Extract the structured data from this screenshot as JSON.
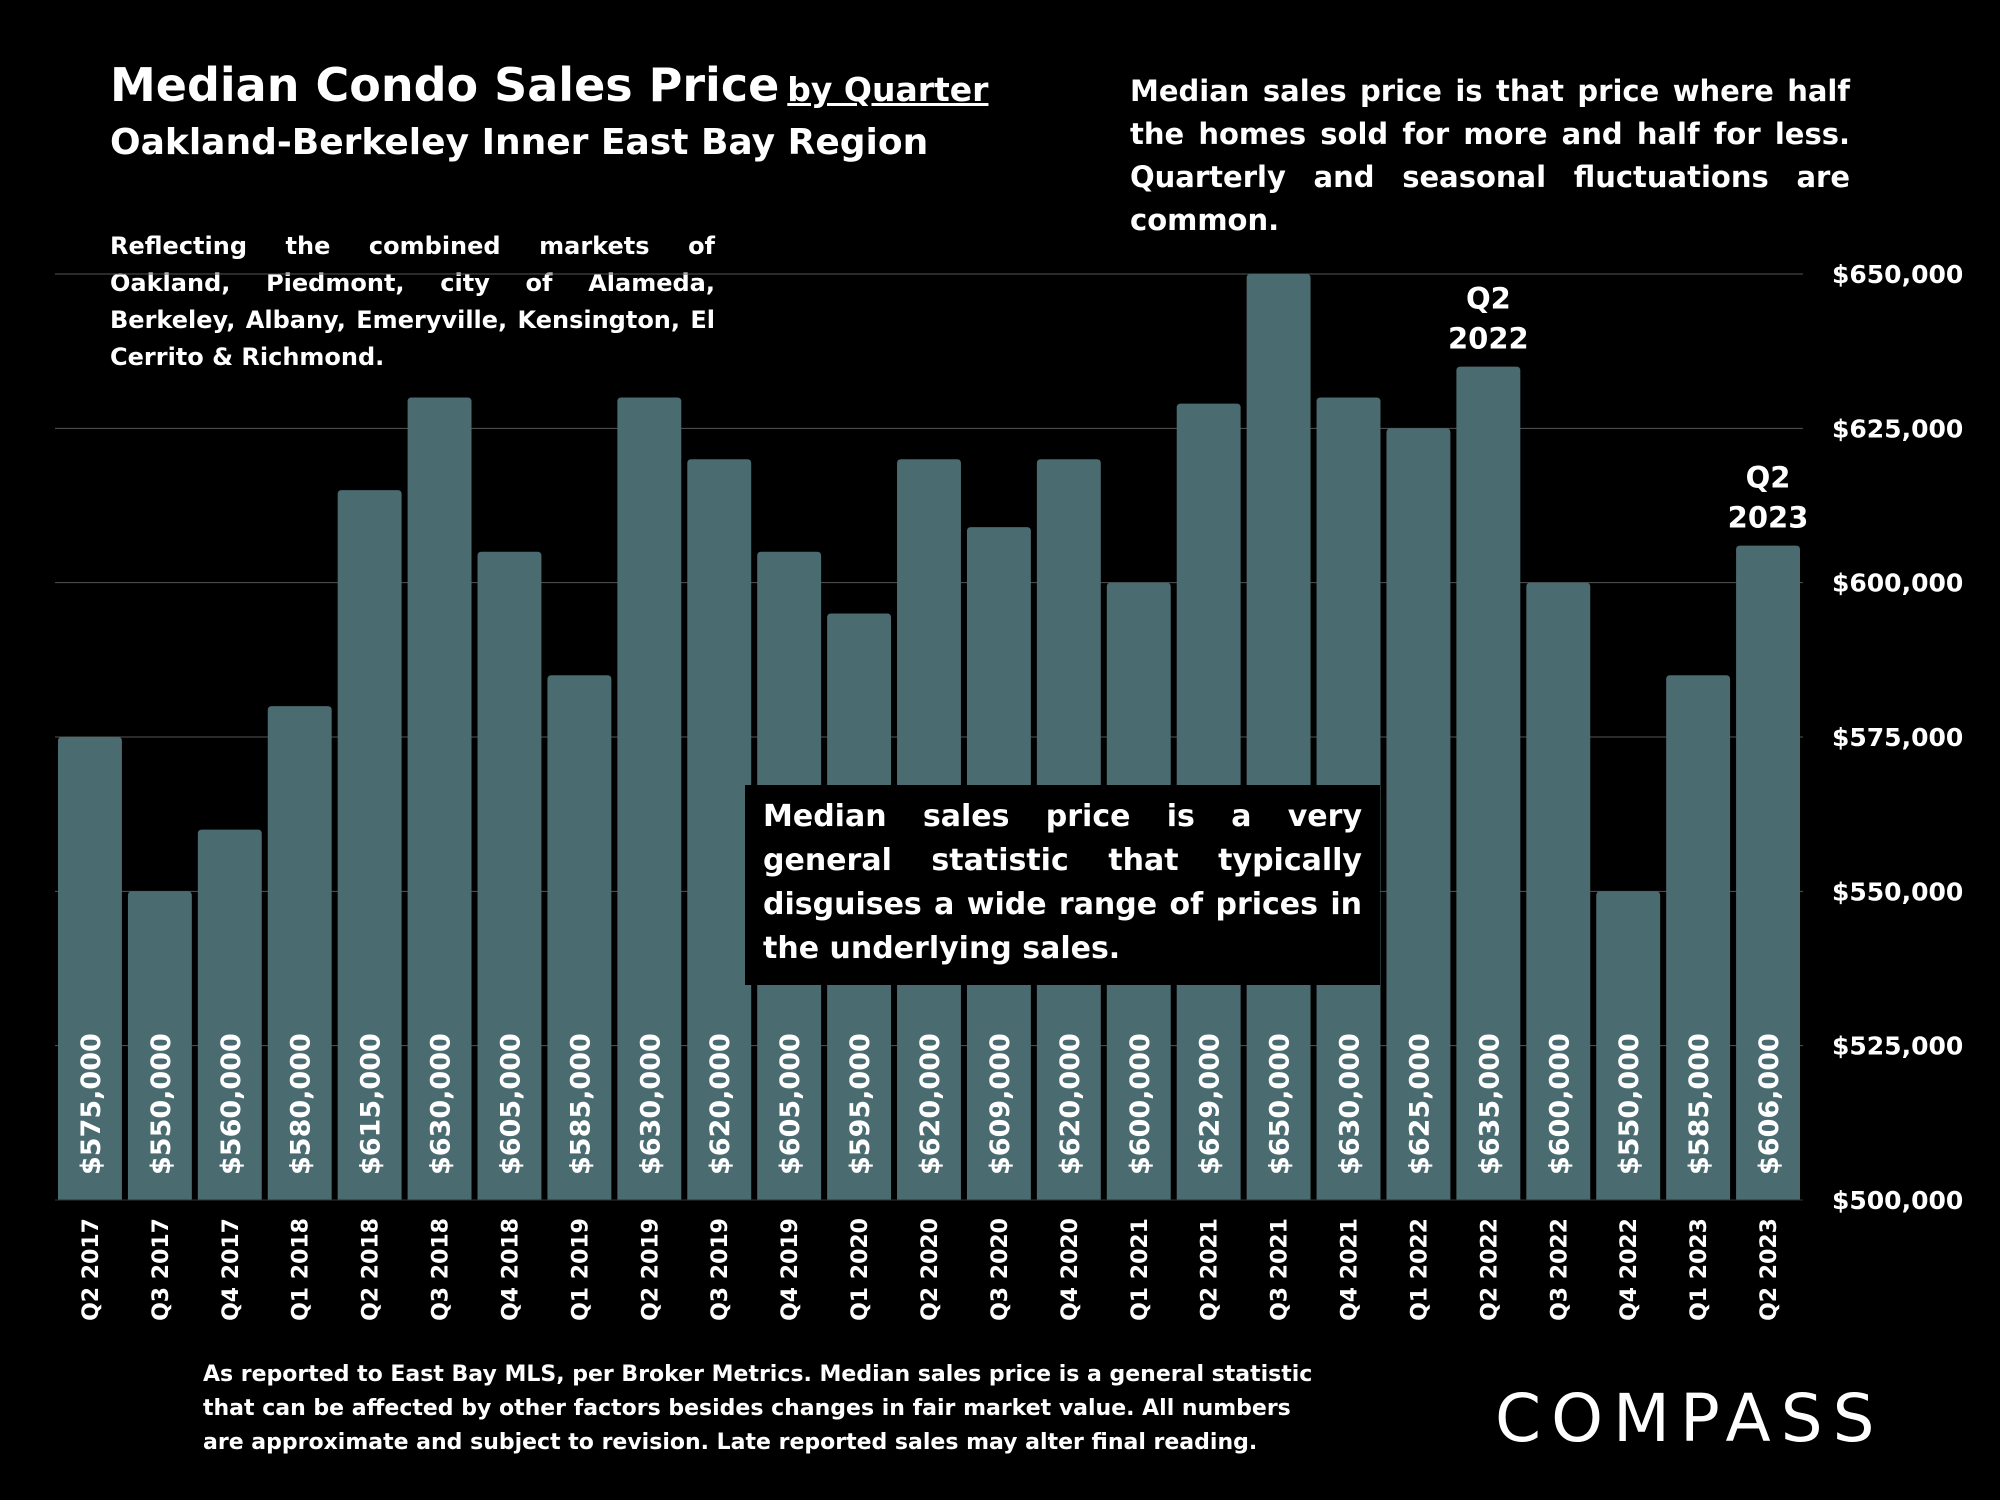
{
  "header": {
    "title": "Median Condo Sales Price",
    "title_suffix": "by Quarter",
    "region": "Oakland-Berkeley Inner East Bay Region",
    "definition": "Median sales price is that price where half the homes sold for more and half for less. Quarterly and seasonal fluctuations are common.",
    "coverage": "Reflecting the combined markets of Oakland, Piedmont, city of Alameda, Berkeley, Albany, Emeryville, Kensington, El Cerrito & Richmond."
  },
  "callout": "Median sales price is a very general statistic that typically disguises a wide range of prices in the underlying sales.",
  "footer": "As reported to East Bay MLS, per Broker Metrics. Median sales price is a general statistic that can be affected by other factors besides changes in fair market value. All numbers are approximate and subject to revision. Late reported sales may alter final reading.",
  "logo": "COMPASS",
  "colors": {
    "background": "#000000",
    "bar": "#4a6b70",
    "text": "#ffffff",
    "grid": "#555555"
  },
  "chart_data": {
    "type": "bar",
    "categories": [
      "Q2 2017",
      "Q3 2017",
      "Q4 2017",
      "Q1 2018",
      "Q2 2018",
      "Q3 2018",
      "Q4 2018",
      "Q1 2019",
      "Q2 2019",
      "Q3 2019",
      "Q4 2019",
      "Q1 2020",
      "Q2 2020",
      "Q3 2020",
      "Q4 2020",
      "Q1 2021",
      "Q2 2021",
      "Q3 2021",
      "Q4 2021",
      "Q1 2022",
      "Q2 2022",
      "Q3 2022",
      "Q4 2022",
      "Q1 2023",
      "Q2 2023"
    ],
    "values": [
      575000,
      550000,
      560000,
      580000,
      615000,
      630000,
      605000,
      585000,
      630000,
      620000,
      605000,
      595000,
      620000,
      609000,
      620000,
      600000,
      629000,
      650000,
      630000,
      625000,
      635000,
      600000,
      550000,
      585000,
      606000
    ],
    "value_labels": [
      "$575,000",
      "$550,000",
      "$560,000",
      "$580,000",
      "$615,000",
      "$630,000",
      "$605,000",
      "$585,000",
      "$630,000",
      "$620,000",
      "$605,000",
      "$595,000",
      "$620,000",
      "$609,000",
      "$620,000",
      "$600,000",
      "$629,000",
      "$650,000",
      "$630,000",
      "$625,000",
      "$635,000",
      "$600,000",
      "$550,000",
      "$585,000",
      "$606,000"
    ],
    "ylim": [
      500000,
      650000
    ],
    "yticks": [
      500000,
      525000,
      550000,
      575000,
      600000,
      625000,
      650000
    ],
    "ytick_labels": [
      "$500,000",
      "$525,000",
      "$550,000",
      "$575,000",
      "$600,000",
      "$625,000",
      "$650,000"
    ],
    "y_axis_side": "right",
    "grid": true,
    "annotations": [
      {
        "category": "Q2 2022",
        "lines": [
          "Q2",
          "2022"
        ]
      },
      {
        "category": "Q2 2023",
        "lines": [
          "Q2",
          "2023"
        ]
      }
    ]
  }
}
